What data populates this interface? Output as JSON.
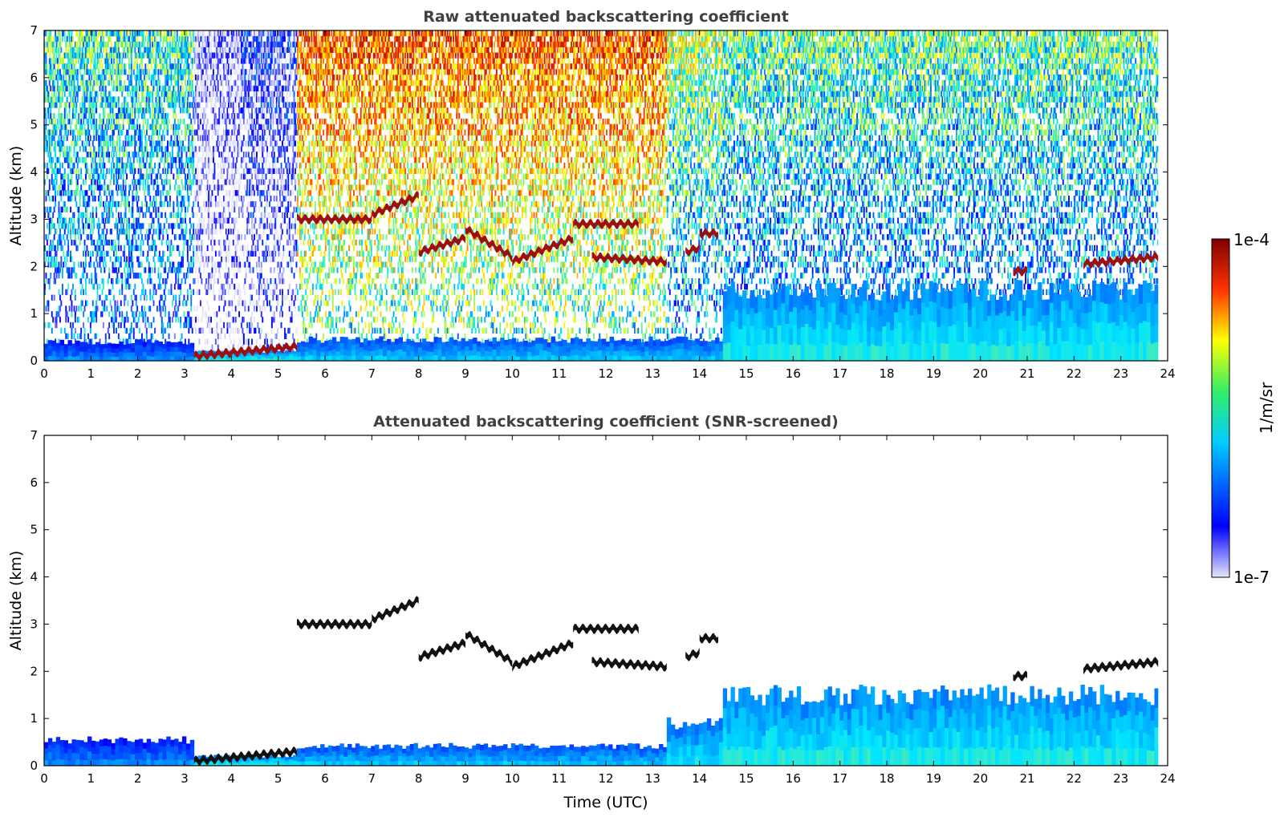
{
  "chart_data": [
    {
      "type": "heatmap",
      "title": "Raw attenuated backscattering coefficient",
      "xlabel": "",
      "ylabel": "Altitude (km)",
      "xlim": [
        0,
        24
      ],
      "ylim": [
        0,
        7
      ],
      "x_ticks": [
        "0",
        "1",
        "2",
        "3",
        "4",
        "5",
        "6",
        "7",
        "8",
        "9",
        "10",
        "11",
        "12",
        "13",
        "14",
        "15",
        "16",
        "17",
        "18",
        "19",
        "20",
        "21",
        "22",
        "23",
        "24"
      ],
      "y_ticks": [
        "0",
        "1",
        "2",
        "3",
        "4",
        "5",
        "6",
        "7"
      ],
      "data_end_time": 23.8,
      "background_regions": [
        {
          "t0": 0,
          "t1": 3.2,
          "ceiling": 0.4,
          "level": 0.2
        },
        {
          "t0": 3.2,
          "t1": 5.4,
          "ceiling": 0.2,
          "level": 0.3
        },
        {
          "t0": 5.4,
          "t1": 14.5,
          "ceiling": 0.45,
          "level": 0.25
        },
        {
          "t0": 14.5,
          "t1": 23.8,
          "ceiling": 1.5,
          "level": 0.3
        }
      ],
      "noise_regions": [
        {
          "t0": 0,
          "t1": 3.2,
          "level": 0.45
        },
        {
          "t0": 3.2,
          "t1": 4.2,
          "level": 0.05
        },
        {
          "t0": 4.2,
          "t1": 5.4,
          "level": 0.15
        },
        {
          "t0": 5.4,
          "t1": 13.3,
          "level": 0.78
        },
        {
          "t0": 13.3,
          "t1": 14.5,
          "level": 0.55
        },
        {
          "t0": 14.5,
          "t1": 23.8,
          "level": 0.48
        }
      ],
      "cloud_layers": [
        {
          "t0": 3.2,
          "t1": 5.4,
          "alt_start": 0.1,
          "alt_end": 0.3
        },
        {
          "t0": 5.4,
          "t1": 7.0,
          "alt_start": 3.0,
          "alt_end": 3.0
        },
        {
          "t0": 7.0,
          "t1": 8.0,
          "alt_start": 3.1,
          "alt_end": 3.5
        },
        {
          "t0": 8.0,
          "t1": 9.0,
          "alt_start": 2.3,
          "alt_end": 2.6
        },
        {
          "t0": 9.0,
          "t1": 10.0,
          "alt_start": 2.8,
          "alt_end": 2.2
        },
        {
          "t0": 10.0,
          "t1": 11.3,
          "alt_start": 2.1,
          "alt_end": 2.6
        },
        {
          "t0": 11.3,
          "t1": 12.7,
          "alt_start": 2.9,
          "alt_end": 2.9
        },
        {
          "t0": 11.7,
          "t1": 13.3,
          "alt_start": 2.2,
          "alt_end": 2.1
        },
        {
          "t0": 13.7,
          "t1": 14.0,
          "alt_start": 2.3,
          "alt_end": 2.4
        },
        {
          "t0": 14.0,
          "t1": 14.4,
          "alt_start": 2.7,
          "alt_end": 2.7
        },
        {
          "t0": 20.7,
          "t1": 21.0,
          "alt_start": 1.9,
          "alt_end": 1.9
        },
        {
          "t0": 22.2,
          "t1": 23.8,
          "alt_start": 2.05,
          "alt_end": 2.2
        }
      ]
    },
    {
      "type": "heatmap",
      "title": "Attenuated backscattering coefficient (SNR-screened)",
      "xlabel": "Time (UTC)",
      "ylabel": "Altitude (km)",
      "xlim": [
        0,
        24
      ],
      "ylim": [
        0,
        7
      ],
      "x_ticks": [
        "0",
        "1",
        "2",
        "3",
        "4",
        "5",
        "6",
        "7",
        "8",
        "9",
        "10",
        "11",
        "12",
        "13",
        "14",
        "15",
        "16",
        "17",
        "18",
        "19",
        "20",
        "21",
        "22",
        "23",
        "24"
      ],
      "y_ticks": [
        "0",
        "1",
        "2",
        "3",
        "4",
        "5",
        "6",
        "7"
      ],
      "data_end_time": 23.8,
      "background_regions": [
        {
          "t0": 0,
          "t1": 3.2,
          "ceiling": 0.55,
          "level": 0.2
        },
        {
          "t0": 3.2,
          "t1": 5.4,
          "ceiling": 0.2,
          "level": 0.3
        },
        {
          "t0": 5.4,
          "t1": 13.3,
          "ceiling": 0.42,
          "level": 0.25
        },
        {
          "t0": 13.3,
          "t1": 14.5,
          "ceiling": 0.9,
          "level": 0.28
        },
        {
          "t0": 14.5,
          "t1": 23.8,
          "ceiling": 1.5,
          "level": 0.3
        }
      ],
      "cloud_layers": [
        {
          "t0": 3.2,
          "t1": 5.4,
          "alt_start": 0.1,
          "alt_end": 0.3
        },
        {
          "t0": 5.4,
          "t1": 7.0,
          "alt_start": 3.0,
          "alt_end": 3.0
        },
        {
          "t0": 7.0,
          "t1": 8.0,
          "alt_start": 3.1,
          "alt_end": 3.5
        },
        {
          "t0": 8.0,
          "t1": 9.0,
          "alt_start": 2.3,
          "alt_end": 2.6
        },
        {
          "t0": 9.0,
          "t1": 10.0,
          "alt_start": 2.8,
          "alt_end": 2.2
        },
        {
          "t0": 10.0,
          "t1": 11.3,
          "alt_start": 2.1,
          "alt_end": 2.6
        },
        {
          "t0": 11.3,
          "t1": 12.7,
          "alt_start": 2.9,
          "alt_end": 2.9
        },
        {
          "t0": 11.7,
          "t1": 13.3,
          "alt_start": 2.2,
          "alt_end": 2.1
        },
        {
          "t0": 13.7,
          "t1": 14.0,
          "alt_start": 2.3,
          "alt_end": 2.4
        },
        {
          "t0": 14.0,
          "t1": 14.4,
          "alt_start": 2.7,
          "alt_end": 2.7
        },
        {
          "t0": 20.7,
          "t1": 21.0,
          "alt_start": 1.9,
          "alt_end": 1.9
        },
        {
          "t0": 22.2,
          "t1": 23.8,
          "alt_start": 2.05,
          "alt_end": 2.2
        }
      ]
    }
  ],
  "colorbar": {
    "label": "1/m/sr",
    "max_label": "1e-4",
    "min_label": "1e-7",
    "scale": "log",
    "range": [
      1e-07,
      0.0001
    ],
    "colors": [
      "#e6e6fa",
      "#0000ff",
      "#00e5ff",
      "#ffff00",
      "#ff3300",
      "#800000"
    ]
  }
}
